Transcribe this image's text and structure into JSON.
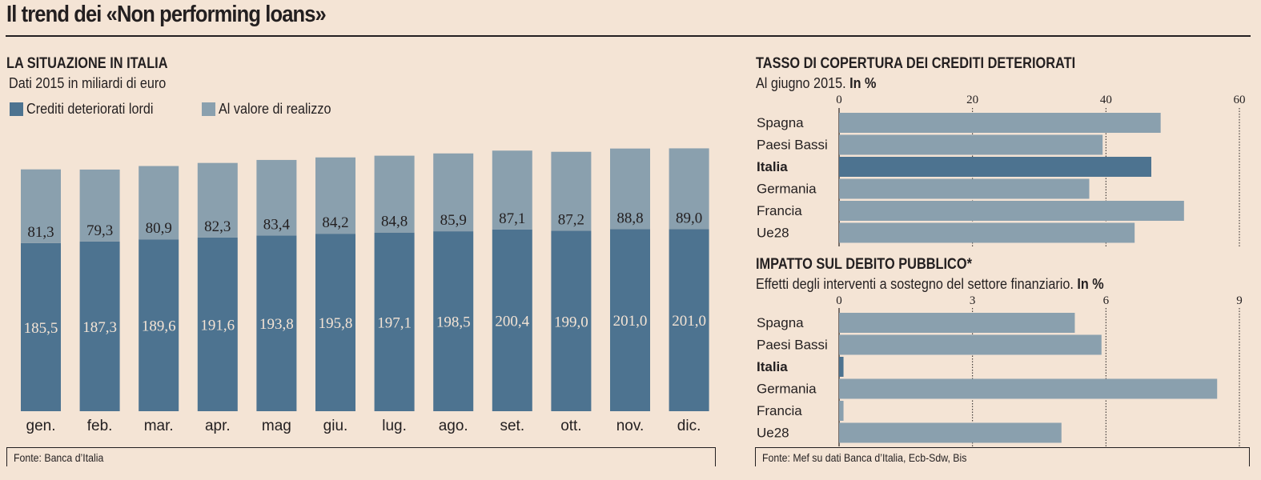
{
  "title": "Il trend dei «Non performing loans»",
  "colors": {
    "background": "#f4e4d5",
    "dark": "#4d7390",
    "light": "#8aa0ae",
    "text": "#231f20",
    "value_light_text": "#f4e4d5"
  },
  "left": {
    "title": "LA SITUAZIONE IN ITALIA",
    "subtitle": "Dati 2015 in miliardi di euro",
    "legend": [
      {
        "label": "Crediti deteriorati lordi",
        "color": "#4d7390"
      },
      {
        "label": "Al valore di realizzo",
        "color": "#8aa0ae"
      }
    ],
    "source": "Fonte: Banca d’Italia"
  },
  "right_top": {
    "title": "TASSO DI COPERTURA DEI CREDITI DETERIORATI",
    "subtitle_plain": "Al giugno 2015.",
    "subtitle_bold": "In %"
  },
  "right_bottom": {
    "title": "IMPATTO SUL DEBITO PUBBLICO*",
    "subtitle_plain": "Effetti degli interventi a sostegno del settore finanziario.",
    "subtitle_bold": "In %",
    "source": "Fonte: Mef su dati Banca d’Italia, Ecb-Sdw, Bis"
  },
  "chart_data": [
    {
      "type": "bar",
      "stacked": true,
      "title": "LA SITUAZIONE IN ITALIA",
      "subtitle": "Dati 2015 in miliardi di euro",
      "categories": [
        "gen.",
        "feb.",
        "mar.",
        "apr.",
        "mag",
        "giu.",
        "lug.",
        "ago.",
        "set.",
        "ott.",
        "nov.",
        "dic."
      ],
      "series": [
        {
          "name": "Crediti deteriorati lordi",
          "values": [
            185.5,
            187.3,
            189.6,
            191.6,
            193.8,
            195.8,
            197.1,
            198.5,
            200.4,
            199.0,
            201.0,
            201.0
          ],
          "labels": [
            "185,5",
            "187,3",
            "189,6",
            "191,6",
            "193,8",
            "195,8",
            "197,1",
            "198,5",
            "200,4",
            "199,0",
            "201,0",
            "201,0"
          ]
        },
        {
          "name": "Al valore di realizzo",
          "values": [
            81.3,
            79.3,
            80.9,
            82.3,
            83.4,
            84.2,
            84.8,
            85.9,
            87.1,
            87.2,
            88.8,
            89.0
          ],
          "labels": [
            "81,3",
            "79,3",
            "80,9",
            "82,3",
            "83,4",
            "84,2",
            "84,8",
            "85,9",
            "87,1",
            "87,2",
            "88,8",
            "89,0"
          ]
        }
      ],
      "xlabel": "",
      "ylabel": "",
      "grid": false,
      "legend": "top-left"
    },
    {
      "type": "bar",
      "orientation": "horizontal",
      "title": "TASSO DI COPERTURA DEI CREDITI DETERIORATI",
      "subtitle": "Al giugno 2015. In %",
      "categories": [
        "Spagna",
        "Paesi Bassi",
        "Italia",
        "Germania",
        "Francia",
        "Ue28"
      ],
      "highlight": "Italia",
      "values": [
        48.2,
        39.5,
        46.8,
        37.5,
        51.7,
        44.3
      ],
      "xlim": [
        0,
        60
      ],
      "xticks": [
        "0",
        "20",
        "40",
        "60"
      ],
      "grid": true
    },
    {
      "type": "bar",
      "orientation": "horizontal",
      "title": "IMPATTO SUL DEBITO PUBBLICO*",
      "subtitle": "Effetti degli interventi a sostegno del settore finanziario. In %",
      "categories": [
        "Spagna",
        "Paesi Bassi",
        "Italia",
        "Germania",
        "Francia",
        "Ue28"
      ],
      "highlight": "Italia",
      "values": [
        5.3,
        5.9,
        0.1,
        8.5,
        0.1,
        5.0
      ],
      "xlim": [
        0,
        9
      ],
      "xticks": [
        "0",
        "3",
        "6",
        "9"
      ],
      "grid": true
    }
  ]
}
